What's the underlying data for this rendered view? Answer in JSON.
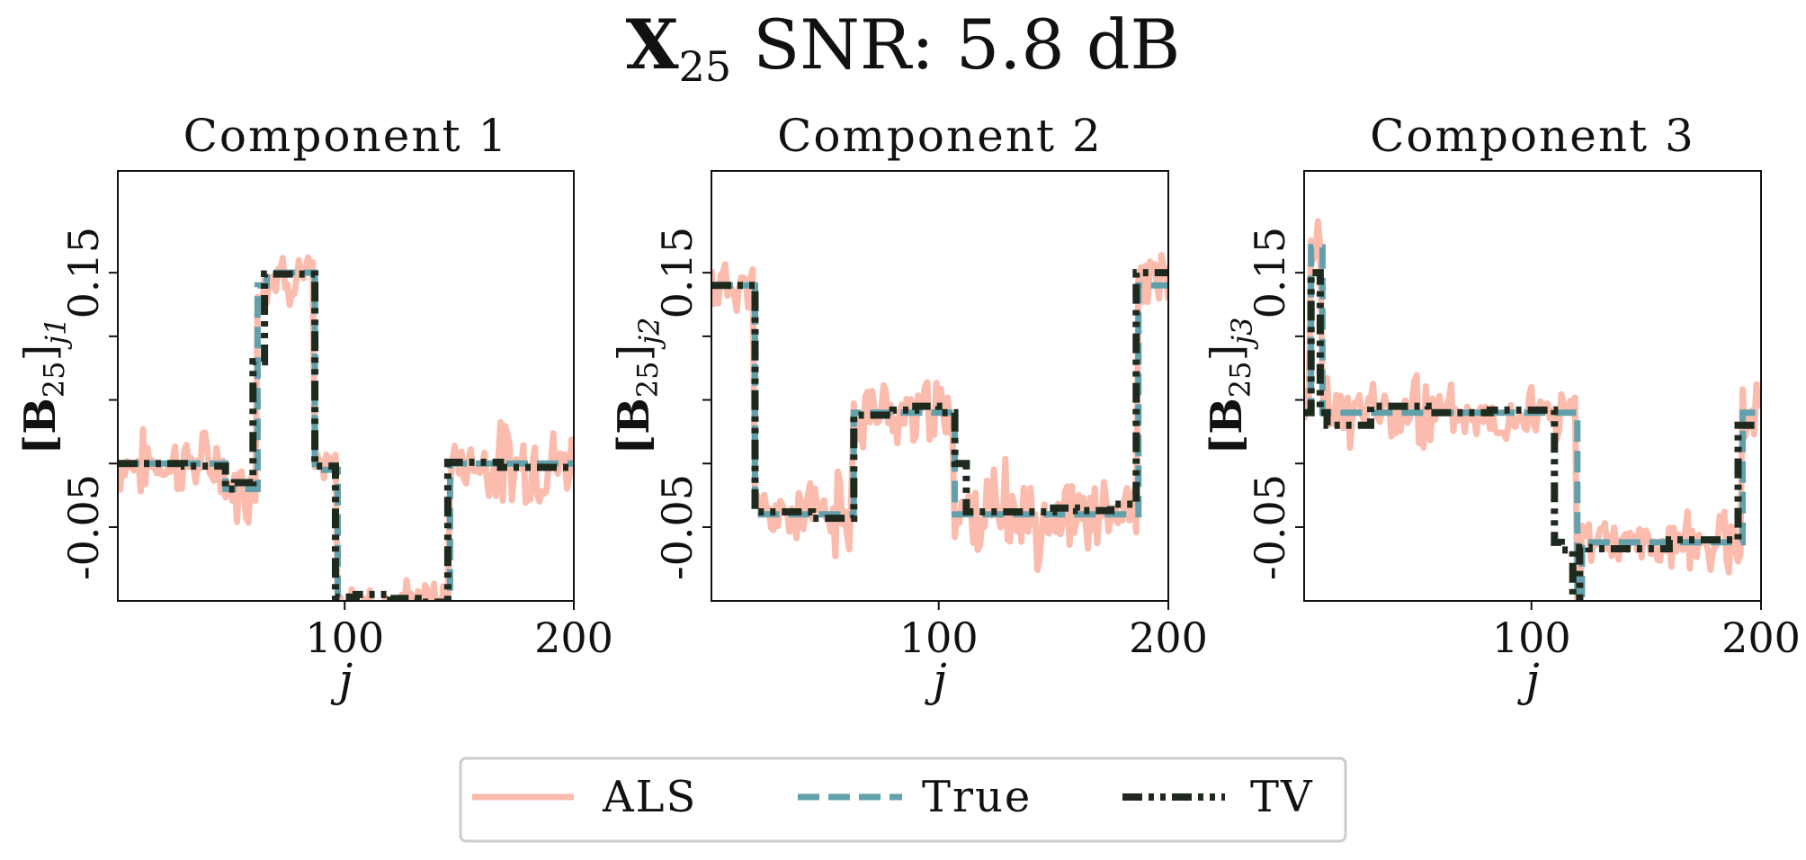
{
  "figure": {
    "title_main": "X",
    "title_sub": "25",
    "title_rest": " SNR: 5.8 dB"
  },
  "colors": {
    "ALS": "#fbbcae",
    "True": "#62a0ab",
    "TV": "#1f2a1e"
  },
  "legend": {
    "placement": "bottom-center",
    "entries": [
      "ALS",
      "True",
      "TV"
    ]
  },
  "chart_data": [
    {
      "type": "line",
      "title": "Component 1",
      "xlabel": "j",
      "ylabel_main": "[B",
      "ylabel_sub1": "25",
      "ylabel_close": "]",
      "ylabel_sub2": "j1",
      "xlim": [
        1,
        200
      ],
      "ylim": [
        -0.108,
        0.23
      ],
      "xticks": [
        100,
        200
      ],
      "yticks": [
        -0.05,
        0.15
      ],
      "yticks_minor": [
        0.0,
        0.05,
        0.1
      ],
      "series": [
        {
          "name": "True",
          "x": [
            1,
            48,
            48,
            62,
            62,
            66,
            66,
            87,
            87,
            97,
            97,
            146,
            146,
            200
          ],
          "y": [
            0,
            0,
            -0.02,
            -0.02,
            0.14,
            0.14,
            0.15,
            0.15,
            -0.005,
            -0.005,
            -0.11,
            -0.11,
            0,
            0
          ]
        },
        {
          "name": "TV",
          "x": [
            1,
            30,
            30,
            48,
            48,
            52,
            52,
            60,
            60,
            65,
            65,
            87,
            87,
            96,
            96,
            105,
            105,
            120,
            120,
            132,
            132,
            145,
            145,
            168,
            168,
            200
          ],
          "y": [
            0.0,
            0.0,
            -0.002,
            -0.002,
            -0.02,
            -0.02,
            -0.015,
            -0.015,
            0.08,
            0.08,
            0.149,
            0.149,
            -0.002,
            -0.002,
            -0.105,
            -0.105,
            -0.103,
            -0.103,
            -0.106,
            -0.106,
            -0.109,
            -0.109,
            0.001,
            0.001,
            -0.003,
            -0.003
          ]
        },
        {
          "name": "ALS",
          "noise": [
            0.02,
            0.02,
            0.012,
            0.015,
            0.025
          ],
          "seed": 7
        }
      ]
    },
    {
      "type": "line",
      "title": "Component 2",
      "xlabel": "j",
      "ylabel_main": "[B",
      "ylabel_sub1": "25",
      "ylabel_close": "]",
      "ylabel_sub2": "j2",
      "xlim": [
        1,
        200
      ],
      "ylim": [
        -0.108,
        0.23
      ],
      "xticks": [
        100,
        200
      ],
      "yticks": [
        -0.05,
        0.15
      ],
      "yticks_minor": [
        0.0,
        0.05,
        0.1
      ],
      "series": [
        {
          "name": "True",
          "x": [
            1,
            20,
            20,
            63,
            63,
            107,
            107,
            187,
            187,
            200
          ],
          "y": [
            0.14,
            0.14,
            -0.04,
            -0.04,
            0.04,
            0.04,
            -0.04,
            -0.04,
            0.14,
            0.14
          ]
        },
        {
          "name": "TV",
          "x": [
            1,
            20,
            20,
            45,
            45,
            63,
            63,
            80,
            80,
            90,
            90,
            100,
            100,
            107,
            107,
            112,
            112,
            150,
            150,
            160,
            160,
            175,
            175,
            186,
            186,
            200
          ],
          "y": [
            0.14,
            0.14,
            -0.038,
            -0.038,
            -0.043,
            -0.043,
            0.038,
            0.038,
            0.042,
            0.042,
            0.045,
            0.045,
            0.04,
            0.04,
            0.0,
            0.0,
            -0.038,
            -0.038,
            -0.035,
            -0.035,
            -0.037,
            -0.037,
            -0.032,
            -0.032,
            0.15,
            0.15
          ]
        },
        {
          "name": "ALS",
          "noise": [
            0.018,
            0.025,
            0.02,
            0.03,
            0.02
          ],
          "seed": 11
        }
      ]
    },
    {
      "type": "line",
      "title": "Component 3",
      "xlabel": "j",
      "ylabel_main": "[B",
      "ylabel_sub1": "25",
      "ylabel_close": "]",
      "ylabel_sub2": "j3",
      "xlim": [
        1,
        200
      ],
      "ylim": [
        -0.108,
        0.23
      ],
      "xticks": [
        100,
        200
      ],
      "yticks": [
        -0.05,
        0.15
      ],
      "yticks_minor": [
        0.0,
        0.05,
        0.1
      ],
      "series": [
        {
          "name": "True",
          "x": [
            1,
            4,
            4,
            9,
            9,
            12,
            12,
            120,
            120,
            122,
            122,
            192,
            192,
            200
          ],
          "y": [
            0.04,
            0.04,
            0.17,
            0.17,
            0.04,
            0.04,
            0.04,
            0.04,
            -0.13,
            -0.13,
            -0.062,
            -0.062,
            0.04,
            0.04
          ]
        },
        {
          "name": "TV",
          "x": [
            1,
            4,
            4,
            8,
            8,
            11,
            11,
            14,
            14,
            30,
            30,
            55,
            55,
            82,
            82,
            110,
            110,
            113,
            113,
            118,
            118,
            121,
            121,
            125,
            125,
            160,
            160,
            190,
            190,
            200
          ],
          "y": [
            0.04,
            0.04,
            0.15,
            0.15,
            0.04,
            0.04,
            0.03,
            0.03,
            0.03,
            0.03,
            0.045,
            0.045,
            0.04,
            0.04,
            0.042,
            0.042,
            -0.062,
            -0.062,
            -0.068,
            -0.068,
            -0.115,
            -0.115,
            -0.066,
            -0.066,
            -0.067,
            -0.067,
            -0.06,
            -0.06,
            0.03,
            0.03
          ]
        },
        {
          "name": "ALS",
          "noise": [
            0.02,
            0.022,
            0.018,
            0.015,
            0.02
          ],
          "seed": 23
        }
      ]
    }
  ]
}
